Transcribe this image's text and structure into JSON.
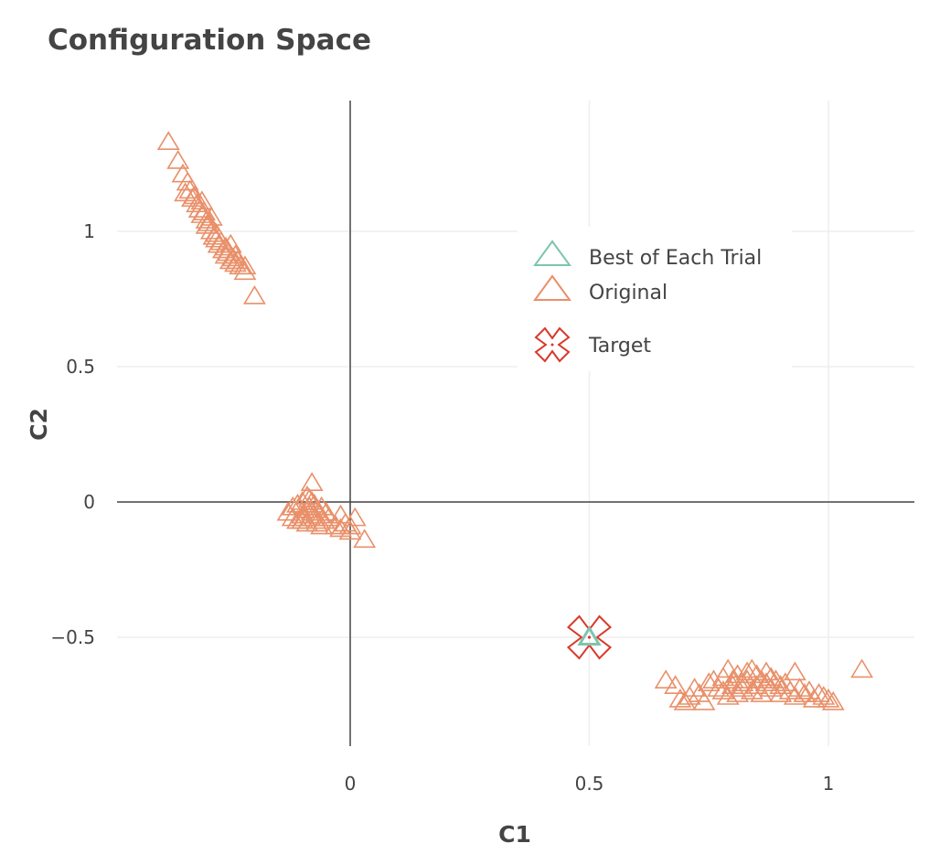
{
  "chart_data": {
    "type": "scatter",
    "title": "Configuration Space",
    "xlabel": "C1",
    "ylabel": "C2",
    "xlim": [
      -0.48,
      1.18
    ],
    "ylim": [
      -0.9,
      1.48
    ],
    "x_ticks": [
      0,
      0.5,
      1
    ],
    "y_ticks": [
      -0.5,
      0,
      0.5,
      1
    ],
    "x_tick_labels": [
      "0",
      "0.5",
      "1"
    ],
    "y_tick_labels": [
      "−0.5",
      "0",
      "0.5",
      "1"
    ],
    "grid": true,
    "legend": {
      "placement": "top-right",
      "entries": [
        "Best of Each Trial",
        "Original",
        "Target"
      ]
    },
    "colors": {
      "best": "#7fc4ae",
      "original": "#e9906a",
      "target": "#d9382b",
      "text": "#444444",
      "grid": "#eeeeee"
    },
    "series": [
      {
        "name": "Best of Each Trial",
        "marker": "triangle-up-open",
        "points": [
          [
            0.5,
            -0.5
          ]
        ]
      },
      {
        "name": "Original",
        "marker": "triangle-up-open",
        "points": [
          [
            -0.38,
            1.33
          ],
          [
            -0.36,
            1.26
          ],
          [
            -0.35,
            1.21
          ],
          [
            -0.34,
            1.18
          ],
          [
            -0.345,
            1.14
          ],
          [
            -0.335,
            1.15
          ],
          [
            -0.33,
            1.12
          ],
          [
            -0.325,
            1.13
          ],
          [
            -0.32,
            1.1
          ],
          [
            -0.315,
            1.08
          ],
          [
            -0.31,
            1.06
          ],
          [
            -0.305,
            1.07
          ],
          [
            -0.3,
            1.04
          ],
          [
            -0.3,
            1.02
          ],
          [
            -0.295,
            1.03
          ],
          [
            -0.29,
            1.0
          ],
          [
            -0.285,
            0.98
          ],
          [
            -0.28,
            0.99
          ],
          [
            -0.28,
            0.97
          ],
          [
            -0.275,
            0.95
          ],
          [
            -0.27,
            0.96
          ],
          [
            -0.265,
            0.93
          ],
          [
            -0.26,
            0.94
          ],
          [
            -0.26,
            0.91
          ],
          [
            -0.255,
            0.92
          ],
          [
            -0.25,
            0.89
          ],
          [
            -0.245,
            0.9
          ],
          [
            -0.24,
            0.88
          ],
          [
            -0.235,
            0.89
          ],
          [
            -0.23,
            0.87
          ],
          [
            -0.24,
            0.91
          ],
          [
            -0.25,
            0.95
          ],
          [
            -0.31,
            1.11
          ],
          [
            -0.29,
            1.05
          ],
          [
            -0.22,
            0.85
          ],
          [
            -0.22,
            0.87
          ],
          [
            -0.2,
            0.76
          ],
          [
            -0.08,
            0.07
          ],
          [
            -0.09,
            0.02
          ],
          [
            -0.1,
            0.0
          ],
          [
            -0.11,
            -0.01
          ],
          [
            -0.12,
            -0.02
          ],
          [
            -0.13,
            -0.04
          ],
          [
            -0.12,
            -0.06
          ],
          [
            -0.11,
            -0.07
          ],
          [
            -0.1,
            -0.05
          ],
          [
            -0.09,
            -0.03
          ],
          [
            -0.085,
            -0.02
          ],
          [
            -0.08,
            -0.04
          ],
          [
            -0.075,
            -0.06
          ],
          [
            -0.07,
            -0.03
          ],
          [
            -0.065,
            -0.05
          ],
          [
            -0.06,
            -0.02
          ],
          [
            -0.055,
            -0.07
          ],
          [
            -0.05,
            -0.04
          ],
          [
            -0.045,
            -0.06
          ],
          [
            -0.09,
            -0.08
          ],
          [
            -0.085,
            0.01
          ],
          [
            -0.08,
            0.0
          ],
          [
            -0.075,
            -0.01
          ],
          [
            -0.1,
            -0.07
          ],
          [
            -0.095,
            -0.06
          ],
          [
            -0.02,
            -0.05
          ],
          [
            -0.01,
            -0.08
          ],
          [
            0.0,
            -0.09
          ],
          [
            -0.03,
            -0.09
          ],
          [
            -0.02,
            -0.1
          ],
          [
            0.01,
            -0.06
          ],
          [
            0.0,
            -0.11
          ],
          [
            0.03,
            -0.14
          ],
          [
            -0.07,
            -0.08
          ],
          [
            -0.06,
            -0.09
          ],
          [
            0.66,
            -0.66
          ],
          [
            0.68,
            -0.68
          ],
          [
            0.69,
            -0.73
          ],
          [
            0.7,
            -0.74
          ],
          [
            0.71,
            -0.72
          ],
          [
            0.72,
            -0.69
          ],
          [
            0.73,
            -0.71
          ],
          [
            0.74,
            -0.74
          ],
          [
            0.75,
            -0.67
          ],
          [
            0.76,
            -0.66
          ],
          [
            0.77,
            -0.69
          ],
          [
            0.78,
            -0.65
          ],
          [
            0.78,
            -0.7
          ],
          [
            0.79,
            -0.62
          ],
          [
            0.79,
            -0.72
          ],
          [
            0.8,
            -0.66
          ],
          [
            0.8,
            -0.68
          ],
          [
            0.81,
            -0.64
          ],
          [
            0.81,
            -0.71
          ],
          [
            0.82,
            -0.67
          ],
          [
            0.82,
            -0.69
          ],
          [
            0.83,
            -0.63
          ],
          [
            0.83,
            -0.66
          ],
          [
            0.84,
            -0.62
          ],
          [
            0.84,
            -0.7
          ],
          [
            0.85,
            -0.64
          ],
          [
            0.85,
            -0.68
          ],
          [
            0.86,
            -0.66
          ],
          [
            0.86,
            -0.71
          ],
          [
            0.87,
            -0.63
          ],
          [
            0.87,
            -0.67
          ],
          [
            0.88,
            -0.65
          ],
          [
            0.88,
            -0.69
          ],
          [
            0.89,
            -0.66
          ],
          [
            0.9,
            -0.68
          ],
          [
            0.9,
            -0.71
          ],
          [
            0.91,
            -0.67
          ],
          [
            0.92,
            -0.7
          ],
          [
            0.93,
            -0.63
          ],
          [
            0.93,
            -0.72
          ],
          [
            0.94,
            -0.69
          ],
          [
            0.95,
            -0.71
          ],
          [
            0.96,
            -0.7
          ],
          [
            0.97,
            -0.73
          ],
          [
            0.98,
            -0.71
          ],
          [
            0.99,
            -0.72
          ],
          [
            1.0,
            -0.73
          ],
          [
            1.01,
            -0.74
          ],
          [
            1.07,
            -0.62
          ]
        ]
      },
      {
        "name": "Target",
        "marker": "x-open-dot",
        "points": [
          [
            0.5,
            -0.5
          ]
        ]
      }
    ]
  }
}
